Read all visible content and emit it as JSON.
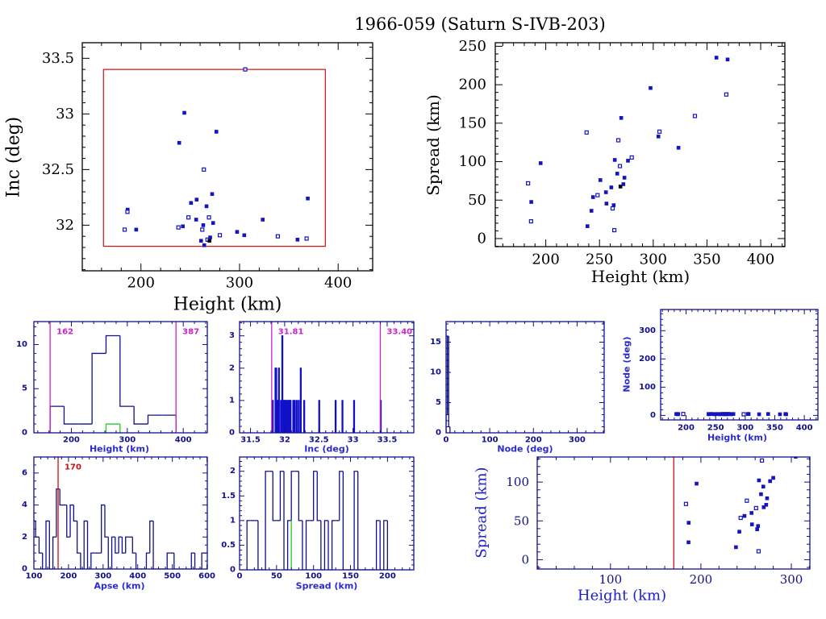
{
  "title": "1966-059 (Saturn S-IVB-203)",
  "colors": {
    "points": "#1414c0",
    "box": "#cc1111",
    "limit_lines": "#cc22cc",
    "highlight": "#22cc22",
    "apse_line": "#cc1111",
    "axes_small": "#10108a"
  },
  "chart_data": [
    {
      "id": "inc-vs-height",
      "type": "scatter",
      "xlabel": "Height (km)",
      "ylabel": "Inc (deg)",
      "xlim": [
        140.5,
        435
      ],
      "ylim": [
        31.59,
        33.64
      ],
      "xticks": [
        200,
        300,
        400
      ],
      "xtick_labels": [
        "200",
        "300",
        "400"
      ],
      "xminor": 20,
      "yticks": [
        32,
        32.5,
        33,
        33.5
      ],
      "ytick_labels": [
        "32",
        "32.5",
        "33",
        "33.5"
      ],
      "yminor": 0.1,
      "box": {
        "x": [
          162,
          387
        ],
        "y": [
          31.81,
          33.4
        ]
      },
      "points": [
        [
          183.5,
          31.96,
          "o"
        ],
        [
          186.5,
          32.14,
          "f"
        ],
        [
          186.3,
          32.12,
          "o"
        ],
        [
          195.2,
          31.96,
          "f"
        ],
        [
          238.0,
          31.98,
          "o"
        ],
        [
          238.8,
          32.74,
          "f"
        ],
        [
          242.5,
          31.99,
          "f"
        ],
        [
          244.0,
          33.01,
          "f"
        ],
        [
          248.2,
          32.07,
          "o"
        ],
        [
          250.8,
          32.2,
          "f"
        ],
        [
          256.0,
          32.05,
          "f"
        ],
        [
          256.5,
          32.23,
          "f"
        ],
        [
          261.0,
          31.86,
          "f"
        ],
        [
          262.2,
          31.96,
          "o"
        ],
        [
          263.2,
          32.0,
          "f"
        ],
        [
          263.8,
          32.5,
          "o"
        ],
        [
          264.2,
          31.82,
          "f"
        ],
        [
          266.5,
          32.17,
          "f"
        ],
        [
          267.5,
          31.87,
          "o"
        ],
        [
          269.0,
          32.07,
          "o"
        ],
        [
          269.5,
          31.86,
          "k"
        ],
        [
          270.2,
          31.89,
          "f"
        ],
        [
          272.2,
          32.28,
          "f"
        ],
        [
          273.2,
          32.02,
          "f"
        ],
        [
          276.5,
          32.84,
          "f"
        ],
        [
          280.0,
          31.91,
          "o"
        ],
        [
          297.5,
          31.94,
          "f"
        ],
        [
          304.8,
          31.91,
          "f"
        ],
        [
          305.8,
          33.4,
          "o"
        ],
        [
          323.5,
          32.05,
          "f"
        ],
        [
          338.8,
          31.9,
          "o"
        ],
        [
          358.8,
          31.87,
          "f"
        ],
        [
          368.0,
          31.88,
          "o"
        ],
        [
          369.2,
          32.24,
          "f"
        ]
      ]
    },
    {
      "id": "spread-vs-height",
      "type": "scatter",
      "xlabel": "Height (km)",
      "ylabel": "Spread (km)",
      "xlim": [
        153,
        422.5
      ],
      "ylim": [
        -10.5,
        254.6
      ],
      "xticks": [
        200,
        250,
        300,
        350,
        400
      ],
      "xtick_labels": [
        "200",
        "250",
        "300",
        "350",
        "400"
      ],
      "xminor": 10,
      "yticks": [
        0,
        50,
        100,
        150,
        200,
        250
      ],
      "ytick_labels": [
        "0",
        "50",
        "100",
        "150",
        "200",
        "250"
      ],
      "yminor": 10,
      "points": [
        [
          183.5,
          71.8,
          "o"
        ],
        [
          186.5,
          47.6,
          "f"
        ],
        [
          186.3,
          22.4,
          "o"
        ],
        [
          195.2,
          98.0,
          "f"
        ],
        [
          238.0,
          137.9,
          "o"
        ],
        [
          238.8,
          16.1,
          "f"
        ],
        [
          242.5,
          36.1,
          "f"
        ],
        [
          244.0,
          53.9,
          "f"
        ],
        [
          248.2,
          56.4,
          "o"
        ],
        [
          250.8,
          76.0,
          "f"
        ],
        [
          256.0,
          60.2,
          "f"
        ],
        [
          256.5,
          45.5,
          "f"
        ],
        [
          261.0,
          66.5,
          "f"
        ],
        [
          262.2,
          39.2,
          "o"
        ],
        [
          263.2,
          43.4,
          "f"
        ],
        [
          263.8,
          10.9,
          "o"
        ],
        [
          264.2,
          102.2,
          "f"
        ],
        [
          266.5,
          84.4,
          "f"
        ],
        [
          267.5,
          127.8,
          "o"
        ],
        [
          269.0,
          94.2,
          "o"
        ],
        [
          269.5,
          67.6,
          "k"
        ],
        [
          270.2,
          156.8,
          "f"
        ],
        [
          272.2,
          70.7,
          "f"
        ],
        [
          273.2,
          79.1,
          "f"
        ],
        [
          276.5,
          101.2,
          "f"
        ],
        [
          280.0,
          105.4,
          "o"
        ],
        [
          297.5,
          195.7,
          "f"
        ],
        [
          304.8,
          132.7,
          "f"
        ],
        [
          305.8,
          139.0,
          "o"
        ],
        [
          323.5,
          118.0,
          "f"
        ],
        [
          338.8,
          159.3,
          "o"
        ],
        [
          358.8,
          235.2,
          "f"
        ],
        [
          368.0,
          187.3,
          "o"
        ],
        [
          369.2,
          232.8,
          "f"
        ]
      ]
    },
    {
      "id": "height-histogram",
      "type": "histogram",
      "xlabel": "Height (km)",
      "xlim": [
        133,
        443
      ],
      "ylim": [
        0,
        12.6
      ],
      "xticks": [
        200,
        300,
        400
      ],
      "xtick_labels": [
        "200",
        "300",
        "400"
      ],
      "xminor": 20,
      "yticks": [
        0,
        5,
        10
      ],
      "ytick_labels": [
        "0",
        "5",
        "10"
      ],
      "yminor": 1,
      "bin_start": 162,
      "bin_width": 25,
      "counts": [
        3,
        1,
        1,
        9,
        11,
        3,
        1,
        2,
        2
      ],
      "overlay": {
        "bin_start": 262,
        "bin_width": 25,
        "counts": [
          1
        ]
      },
      "vlines": [
        {
          "x": 162,
          "label": "162",
          "kind": "limit"
        },
        {
          "x": 387,
          "label": "387",
          "kind": "limit"
        }
      ]
    },
    {
      "id": "inc-histogram",
      "type": "histogram",
      "xlabel": "Inc (deg)",
      "xlim": [
        31.34,
        33.89
      ],
      "ylim": [
        0,
        3.44
      ],
      "xticks": [
        31.5,
        32,
        32.5,
        33,
        33.5
      ],
      "xtick_labels": [
        "31.5",
        "32",
        "32.5",
        "33",
        "33.5"
      ],
      "xminor": 0.1,
      "yticks": [
        0,
        1,
        2,
        3
      ],
      "ytick_labels": [
        "0",
        "1",
        "2",
        "3"
      ],
      "yminor": 0.2,
      "bin_width": 0.01,
      "bars": [
        [
          31.82,
          1
        ],
        [
          31.86,
          2
        ],
        [
          31.87,
          2
        ],
        [
          31.88,
          1
        ],
        [
          31.89,
          1
        ],
        [
          31.9,
          1
        ],
        [
          31.91,
          2
        ],
        [
          31.94,
          1
        ],
        [
          31.96,
          3
        ],
        [
          31.98,
          1
        ],
        [
          31.99,
          1
        ],
        [
          32.0,
          1
        ],
        [
          32.02,
          1
        ],
        [
          32.04,
          1
        ],
        [
          32.05,
          1
        ],
        [
          32.07,
          1
        ],
        [
          32.08,
          1
        ],
        [
          32.12,
          1
        ],
        [
          32.14,
          1
        ],
        [
          32.17,
          1
        ],
        [
          32.2,
          1
        ],
        [
          32.23,
          2
        ],
        [
          32.28,
          1
        ],
        [
          32.5,
          1
        ],
        [
          32.74,
          1
        ],
        [
          32.84,
          1
        ],
        [
          33.01,
          1
        ],
        [
          33.4,
          1
        ]
      ],
      "vlines": [
        {
          "x": 31.81,
          "label": "31.81",
          "kind": "limit"
        },
        {
          "x": 33.4,
          "label": "33.40",
          "kind": "limit"
        }
      ]
    },
    {
      "id": "node-histogram",
      "type": "histogram",
      "xlabel": "Node (deg)",
      "xlim": [
        0,
        362
      ],
      "ylim": [
        0,
        18.4
      ],
      "xticks": [
        0,
        100,
        200,
        300
      ],
      "xtick_labels": [
        "0",
        "100",
        "200",
        "300"
      ],
      "xminor": 20,
      "yticks": [
        0,
        5,
        10,
        15
      ],
      "ytick_labels": [
        "0",
        "5",
        "10",
        "15"
      ],
      "yminor": 1,
      "bin_start": 0,
      "bin_width": 3,
      "counts": [
        3,
        16,
        1
      ]
    },
    {
      "id": "node-vs-height",
      "type": "scatter",
      "xlabel": "Height (km)",
      "ylabel": "Node (deg)",
      "xlim": [
        157,
        423
      ],
      "ylim": [
        -16,
        375
      ],
      "xticks": [
        200,
        250,
        300,
        350,
        400
      ],
      "xtick_labels": [
        "200",
        "250",
        "300",
        "350",
        "400"
      ],
      "xminor": 10,
      "yticks": [
        0,
        100,
        200,
        300
      ],
      "ytick_labels": [
        "0",
        "100",
        "200",
        "300"
      ],
      "yminor": 20,
      "points": [
        [
          183.5,
          5,
          "f"
        ],
        [
          186.5,
          5,
          "f"
        ],
        [
          186.3,
          4,
          "f"
        ],
        [
          195.2,
          5,
          "o"
        ],
        [
          238.0,
          5,
          "f"
        ],
        [
          238.8,
          4,
          "f"
        ],
        [
          242.5,
          5,
          "f"
        ],
        [
          244.0,
          5,
          "f"
        ],
        [
          248.2,
          4,
          "f"
        ],
        [
          250.8,
          5,
          "f"
        ],
        [
          256.0,
          5,
          "f"
        ],
        [
          256.5,
          4,
          "f"
        ],
        [
          261.0,
          5,
          "f"
        ],
        [
          262.2,
          5,
          "f"
        ],
        [
          263.2,
          4,
          "f"
        ],
        [
          263.8,
          5,
          "f"
        ],
        [
          264.2,
          5,
          "f"
        ],
        [
          266.5,
          4,
          "f"
        ],
        [
          267.5,
          5,
          "f"
        ],
        [
          269.0,
          5,
          "f"
        ],
        [
          269.5,
          4,
          "f"
        ],
        [
          270.2,
          5,
          "f"
        ],
        [
          272.2,
          5,
          "f"
        ],
        [
          273.2,
          5,
          "f"
        ],
        [
          276.5,
          4,
          "f"
        ],
        [
          280.0,
          5,
          "f"
        ],
        [
          297.5,
          4,
          "o"
        ],
        [
          304.8,
          5,
          "f"
        ],
        [
          305.8,
          5,
          "f"
        ],
        [
          323.5,
          4,
          "f"
        ],
        [
          338.8,
          5,
          "f"
        ],
        [
          358.8,
          4,
          "f"
        ],
        [
          368.0,
          5,
          "f"
        ],
        [
          369.2,
          4,
          "f"
        ]
      ]
    },
    {
      "id": "apse-histogram",
      "type": "histogram",
      "xlabel": "Apse (km)",
      "xlim": [
        100,
        601
      ],
      "ylim": [
        0,
        7
      ],
      "xticks": [
        100,
        200,
        300,
        400,
        500,
        600
      ],
      "xtick_labels": [
        "100",
        "200",
        "300",
        "400",
        "500",
        "600"
      ],
      "xminor": 20,
      "yticks": [
        0,
        2,
        4,
        6
      ],
      "ytick_labels": [
        "0",
        "2",
        "4",
        "6"
      ],
      "yminor": 0.5,
      "bin_start": 95,
      "bin_width": 10,
      "counts": [
        3,
        2,
        1,
        0,
        3,
        0,
        2,
        5,
        4,
        4,
        2,
        4,
        3,
        1,
        0,
        3,
        0,
        1,
        1,
        1,
        4,
        2,
        0,
        2,
        1,
        2,
        1,
        2,
        2,
        1,
        0,
        0,
        0,
        1,
        3,
        0,
        0,
        0,
        0,
        1,
        1,
        0,
        0,
        0,
        0,
        0,
        1,
        0,
        0,
        1,
        1
      ],
      "vlines": [
        {
          "x": 170,
          "label": "170",
          "kind": "apse"
        }
      ]
    },
    {
      "id": "spread-histogram",
      "type": "histogram",
      "xlabel": "Spread (km)",
      "xlim": [
        0,
        235.6
      ],
      "ylim": [
        0,
        2.29
      ],
      "xticks": [
        0,
        50,
        100,
        150,
        200
      ],
      "xtick_labels": [
        "0",
        "50",
        "100",
        "150",
        "200"
      ],
      "xminor": 10,
      "yticks": [
        0,
        0.5,
        1,
        1.5,
        2
      ],
      "ytick_labels": [
        "0",
        "0.5",
        "1",
        "1.5",
        "2"
      ],
      "yminor": 0.1,
      "bin_start": 10,
      "bin_width": 5,
      "counts": [
        1,
        1,
        1,
        0,
        0,
        2,
        2,
        1,
        1,
        2,
        0,
        1,
        2,
        2,
        1,
        0,
        1,
        1,
        2,
        1,
        0,
        1,
        0,
        1,
        1,
        2,
        0,
        0,
        0,
        2,
        0,
        0,
        0,
        0,
        0,
        1,
        0,
        1
      ],
      "overlay_lines": [
        {
          "x": 70,
          "count": 1
        }
      ]
    },
    {
      "id": "spread-vs-height-zoom",
      "type": "scatter",
      "xlabel": "Height (km)",
      "ylabel": "Spread (km)",
      "xlim": [
        19,
        320.5
      ],
      "ylim": [
        -12,
        132.3
      ],
      "xticks": [
        100,
        200,
        300
      ],
      "xtick_labels": [
        "100",
        "200",
        "300"
      ],
      "xminor": 20,
      "yticks": [
        0,
        50,
        100
      ],
      "ytick_labels": [
        "0",
        "50",
        "100"
      ],
      "yminor": 10,
      "vlines": [
        {
          "x": 170,
          "label": "",
          "kind": "apse"
        }
      ],
      "points": [
        [
          183.5,
          71.8,
          "o"
        ],
        [
          186.5,
          47.6,
          "f"
        ],
        [
          186.3,
          22.4,
          "f"
        ],
        [
          195.2,
          98.0,
          "f"
        ],
        [
          238.0,
          137.9,
          "o"
        ],
        [
          238.8,
          16.1,
          "f"
        ],
        [
          242.5,
          36.1,
          "f"
        ],
        [
          244.0,
          53.9,
          "o"
        ],
        [
          248.2,
          56.4,
          "f"
        ],
        [
          250.8,
          76.0,
          "o"
        ],
        [
          256.0,
          60.2,
          "f"
        ],
        [
          256.5,
          45.5,
          "f"
        ],
        [
          261.0,
          66.5,
          "o"
        ],
        [
          262.2,
          39.2,
          "f"
        ],
        [
          263.2,
          43.4,
          "f"
        ],
        [
          263.8,
          10.9,
          "o"
        ],
        [
          264.2,
          102.2,
          "f"
        ],
        [
          266.5,
          84.4,
          "f"
        ],
        [
          267.5,
          127.8,
          "o"
        ],
        [
          269.0,
          94.2,
          "f"
        ],
        [
          269.5,
          67.6,
          "f"
        ],
        [
          270.2,
          156.8,
          "f"
        ],
        [
          272.2,
          70.7,
          "f"
        ],
        [
          273.2,
          79.1,
          "f"
        ],
        [
          276.5,
          101.2,
          "f"
        ],
        [
          280.0,
          105.4,
          "f"
        ],
        [
          297.5,
          195.7,
          "f"
        ],
        [
          304.8,
          132.7,
          "f"
        ],
        [
          305.8,
          139.0,
          "o"
        ]
      ]
    }
  ]
}
